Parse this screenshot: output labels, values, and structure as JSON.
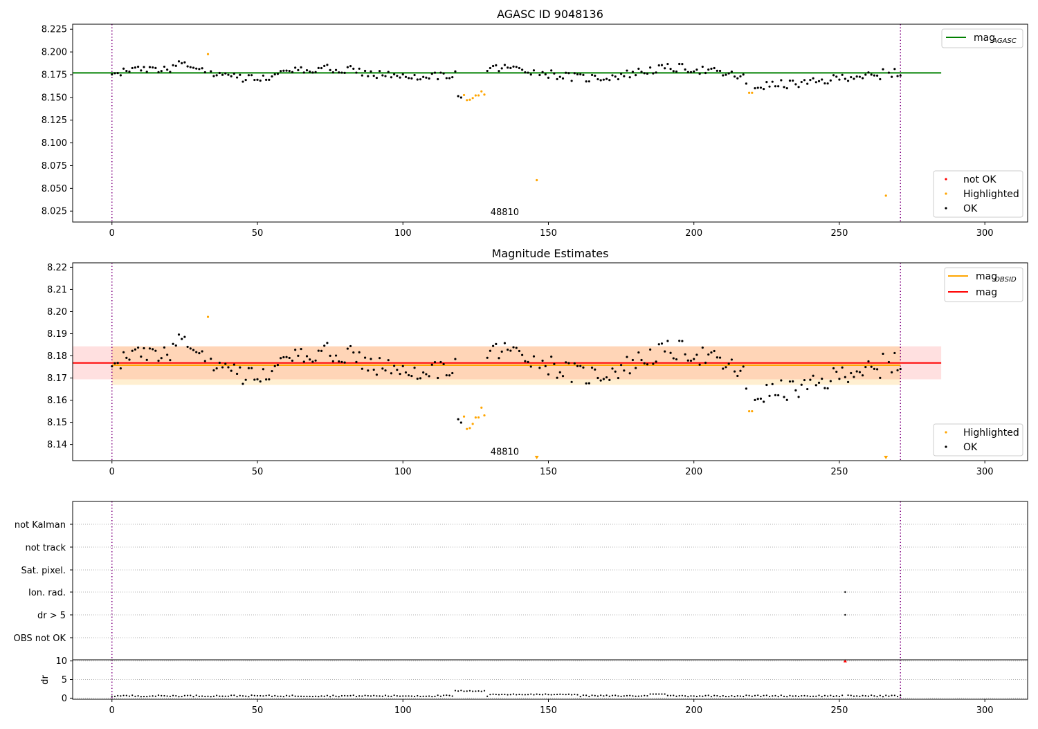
{
  "chart_data": [
    {
      "id": "top",
      "type": "scatter",
      "title": "AGASC ID 9048136",
      "xlim": [
        -13.5,
        314.7
      ],
      "ylim": [
        8.013,
        8.2305
      ],
      "xticks": [
        0,
        50,
        100,
        150,
        200,
        250,
        300
      ],
      "yticks": [
        8.025,
        8.05,
        8.075,
        8.1,
        8.125,
        8.15,
        8.175,
        8.2,
        8.225
      ],
      "ytick_labels": [
        "8.025",
        "8.050",
        "8.075",
        "8.100",
        "8.125",
        "8.150",
        "8.175",
        "8.200",
        "8.225"
      ],
      "vlines": [
        0,
        271
      ],
      "obsid_label": "48810",
      "obsid_label_pos": [
        135,
        8.0205
      ],
      "mag_agasc": 8.177,
      "mag_agasc_xrange": [
        -13.5,
        285
      ],
      "legend_upper": [
        {
          "label": "mag",
          "subscript": "AGASC",
          "color": "#008000"
        }
      ],
      "legend_lower": [
        {
          "label": "not OK",
          "color": "#ff0000"
        },
        {
          "label": "Highlighted",
          "color": "#ffa500"
        },
        {
          "label": "OK",
          "color": "#000000"
        }
      ]
    },
    {
      "id": "mid",
      "type": "scatter",
      "title": "Magnitude Estimates",
      "xlim": [
        -13.5,
        314.7
      ],
      "ylim": [
        8.1327,
        8.222
      ],
      "xticks": [
        0,
        50,
        100,
        150,
        200,
        250,
        300
      ],
      "yticks": [
        8.14,
        8.15,
        8.16,
        8.17,
        8.18,
        8.19,
        8.2,
        8.21,
        8.22
      ],
      "ytick_labels": [
        "8.14",
        "8.15",
        "8.16",
        "8.17",
        "8.18",
        "8.19",
        "8.20",
        "8.21",
        "8.22"
      ],
      "vlines": [
        0,
        271
      ],
      "obsid_label": "48810",
      "obsid_label_pos": [
        135,
        8.1353
      ],
      "mag": 8.1768,
      "mag_band": [
        8.1694,
        8.1843
      ],
      "mag_xrange": [
        -13.5,
        285
      ],
      "mag_obsid": 8.1758,
      "mag_obsid_band": [
        8.1669,
        8.1843
      ],
      "mag_obsid_xrange": [
        0,
        271
      ],
      "off_scale_markers": [
        146,
        266
      ],
      "legend_upper": [
        {
          "label": "mag",
          "subscript": "OBSID",
          "color": "#ffa500"
        },
        {
          "label": "mag",
          "subscript": "",
          "color": "#ff0000"
        }
      ],
      "legend_lower": [
        {
          "label": "Highlighted",
          "color": "#ffa500"
        },
        {
          "label": "OK",
          "color": "#000000"
        }
      ]
    },
    {
      "id": "flags",
      "type": "scatter",
      "categories": [
        "not Kalman",
        "not track",
        "Sat. pixel.",
        "Ion. rad.",
        "dr > 5",
        "OBS not OK"
      ],
      "flag_points": [
        {
          "category": "Ion. rad.",
          "x": 252
        },
        {
          "category": "dr > 5",
          "x": 252
        }
      ],
      "vlines": [
        0,
        271
      ]
    },
    {
      "id": "dr",
      "type": "scatter",
      "ylabel": "dr",
      "xlim": [
        -13.5,
        314.7
      ],
      "ylim": [
        -0.3,
        10.3
      ],
      "xticks": [
        0,
        50,
        100,
        150,
        200,
        250,
        300
      ],
      "yticks": [
        0,
        5,
        10
      ],
      "ytick_labels": [
        "0",
        "5",
        "10"
      ],
      "vlines": [
        0,
        271
      ],
      "outlier": {
        "x": 252,
        "y": 10
      }
    }
  ]
}
